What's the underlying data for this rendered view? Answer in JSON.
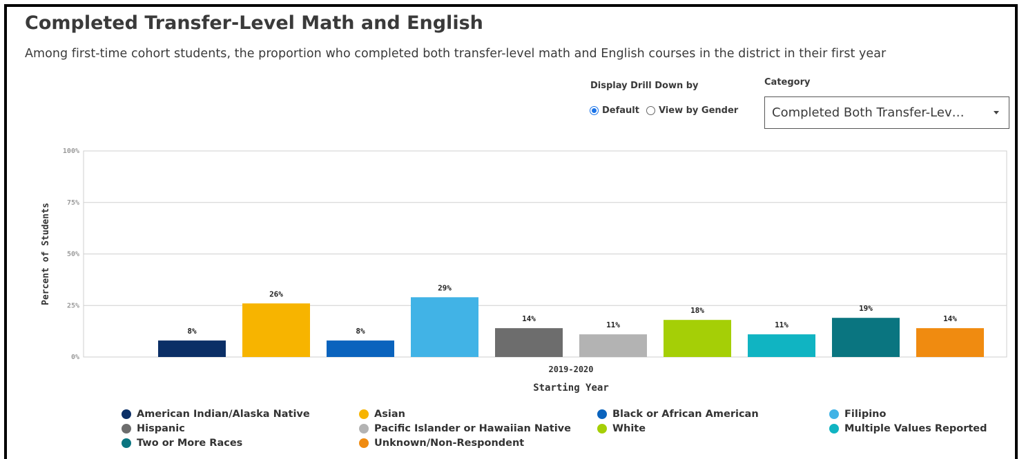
{
  "header": {
    "title": "Completed Transfer-Level Math and English",
    "subtitle": "Among first-time cohort students, the proportion who completed both transfer-level math and English courses in the district in their first year"
  },
  "controls": {
    "drill_label": "Display Drill Down by",
    "radio_default": "Default",
    "radio_gender": "View by Gender",
    "selected_radio": "Default",
    "category_label": "Category",
    "category_value": "Completed Both Transfer-Lev…"
  },
  "chart_data": {
    "type": "bar",
    "title": "",
    "xlabel": "Starting Year",
    "ylabel": "Percent of Students",
    "categories": [
      "2019-2020"
    ],
    "ylim": [
      0,
      100
    ],
    "yticks": [
      "0%",
      "25%",
      "50%",
      "75%",
      "100%"
    ],
    "ytick_values": [
      0,
      25,
      50,
      75,
      100
    ],
    "grid": true,
    "legend_position": "bottom",
    "series": [
      {
        "name": "American Indian/Alaska Native",
        "values": [
          8
        ],
        "label": "8%",
        "color": "#0b2f66"
      },
      {
        "name": "Asian",
        "values": [
          26
        ],
        "label": "26%",
        "color": "#f7b400"
      },
      {
        "name": "Black or African American",
        "values": [
          8
        ],
        "label": "8%",
        "color": "#0a63bd"
      },
      {
        "name": "Filipino",
        "values": [
          29
        ],
        "label": "29%",
        "color": "#41b3e6"
      },
      {
        "name": "Hispanic",
        "values": [
          14
        ],
        "label": "14%",
        "color": "#6d6d6d"
      },
      {
        "name": "Pacific Islander or Hawaiian Native",
        "values": [
          11
        ],
        "label": "11%",
        "color": "#b3b3b3"
      },
      {
        "name": "White",
        "values": [
          18
        ],
        "label": "18%",
        "color": "#a5cf06"
      },
      {
        "name": "Multiple Values Reported",
        "values": [
          11
        ],
        "label": "11%",
        "color": "#10b4c2"
      },
      {
        "name": "Two or More Races",
        "values": [
          19
        ],
        "label": "19%",
        "color": "#0a7580"
      },
      {
        "name": "Unknown/Non-Respondent",
        "values": [
          14
        ],
        "label": "14%",
        "color": "#f08b10"
      }
    ]
  }
}
